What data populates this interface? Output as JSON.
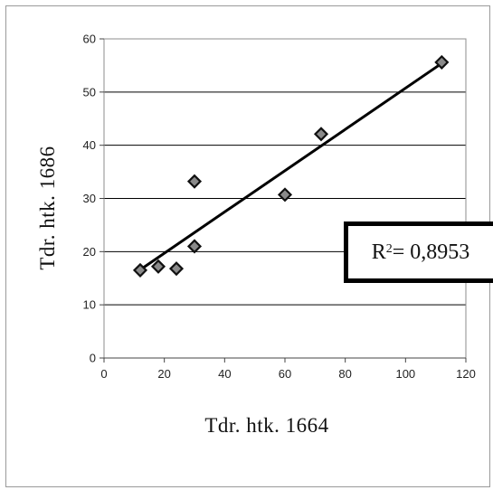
{
  "chart_data": {
    "type": "scatter",
    "xlabel": "Tdr. htk. 1664",
    "ylabel": "Tdr. htk. 1686",
    "xlim": [
      0,
      120
    ],
    "ylim": [
      0,
      60
    ],
    "x_ticks": [
      "0",
      "20",
      "40",
      "60",
      "80",
      "100",
      "120"
    ],
    "y_ticks": [
      "0",
      "10",
      "20",
      "30",
      "40",
      "50",
      "60"
    ],
    "grid": "horizontal",
    "points": [
      {
        "x": 12,
        "y": 16.5
      },
      {
        "x": 18,
        "y": 17.2
      },
      {
        "x": 24,
        "y": 16.8
      },
      {
        "x": 30,
        "y": 21
      },
      {
        "x": 30,
        "y": 33.2
      },
      {
        "x": 60,
        "y": 30.7
      },
      {
        "x": 72,
        "y": 42.1
      },
      {
        "x": 112,
        "y": 55.6
      }
    ],
    "trendline": {
      "x": [
        12,
        112
      ],
      "y": [
        16.6,
        55.4
      ]
    },
    "annotation": {
      "r2_label": "R",
      "r2_exp": "2",
      "r2_value": " = 0,8953"
    },
    "colors": {
      "marker": "#8a8a8a",
      "marker_edge": "#111111",
      "line": "#000000",
      "grid": "#000000"
    }
  }
}
